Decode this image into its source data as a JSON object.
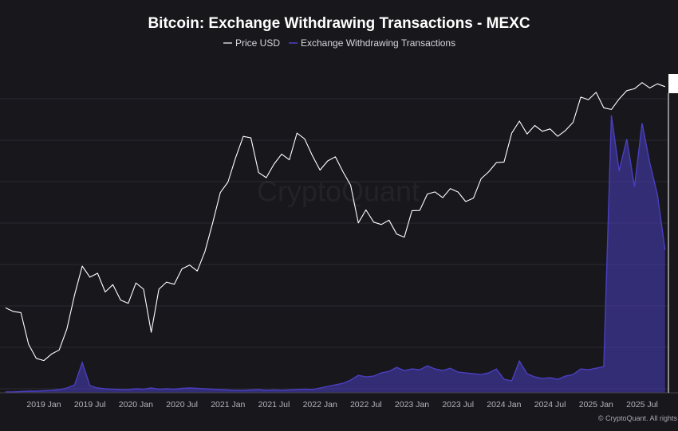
{
  "chart_data": {
    "type": "line",
    "title": "Bitcoin: Exchange Withdrawing Transactions - MEXC",
    "legend": {
      "placement": "top-center",
      "entries": [
        {
          "name": "Price USD",
          "color": "#ffffff"
        },
        {
          "name": "Exchange Withdrawing Transactions",
          "color": "#4a3fc0"
        }
      ]
    },
    "x_tick_labels": [
      "2019 Jan",
      "2019 Jul",
      "2020 Jan",
      "2020 Jul",
      "2021 Jan",
      "2021 Jul",
      "2022 Jan",
      "2022 Jul",
      "2023 Jan",
      "2023 Jul",
      "2024 Jan",
      "2024 Jul",
      "2025 Jan",
      "2025 Jul"
    ],
    "x_range": [
      "2018-08",
      "2025-10"
    ],
    "grid": true,
    "y_axis_price": {
      "scale": "log",
      "range": [
        3000,
        125000
      ]
    },
    "y_axis_transactions": {
      "scale": "linear",
      "range": [
        0,
        4000
      ]
    },
    "series": [
      {
        "name": "Price USD",
        "color": "#ffffff",
        "points": [
          [
            "2018-08",
            6800
          ],
          [
            "2018-09",
            6500
          ],
          [
            "2018-10",
            6400
          ],
          [
            "2018-11",
            4300
          ],
          [
            "2018-12",
            3600
          ],
          [
            "2019-01",
            3500
          ],
          [
            "2019-02",
            3800
          ],
          [
            "2019-03",
            4000
          ],
          [
            "2019-04",
            5200
          ],
          [
            "2019-05",
            8000
          ],
          [
            "2019-06",
            11500
          ],
          [
            "2019-07",
            10000
          ],
          [
            "2019-08",
            10500
          ],
          [
            "2019-09",
            8300
          ],
          [
            "2019-10",
            9100
          ],
          [
            "2019-11",
            7500
          ],
          [
            "2019-12",
            7200
          ],
          [
            "2020-01",
            9300
          ],
          [
            "2020-02",
            8600
          ],
          [
            "2020-03",
            5000
          ],
          [
            "2020-04",
            8600
          ],
          [
            "2020-05",
            9400
          ],
          [
            "2020-06",
            9150
          ],
          [
            "2020-07",
            11100
          ],
          [
            "2020-08",
            11650
          ],
          [
            "2020-09",
            10800
          ],
          [
            "2020-10",
            13800
          ],
          [
            "2020-11",
            19700
          ],
          [
            "2020-12",
            29000
          ],
          [
            "2021-01",
            33100
          ],
          [
            "2021-02",
            45000
          ],
          [
            "2021-03",
            58800
          ],
          [
            "2021-04",
            57700
          ],
          [
            "2021-05",
            37300
          ],
          [
            "2021-06",
            35000
          ],
          [
            "2021-07",
            41500
          ],
          [
            "2021-08",
            47100
          ],
          [
            "2021-09",
            43800
          ],
          [
            "2021-10",
            61300
          ],
          [
            "2021-11",
            57000
          ],
          [
            "2021-12",
            46300
          ],
          [
            "2022-01",
            38500
          ],
          [
            "2022-02",
            43200
          ],
          [
            "2022-03",
            45500
          ],
          [
            "2022-04",
            37700
          ],
          [
            "2022-05",
            31800
          ],
          [
            "2022-06",
            19800
          ],
          [
            "2022-07",
            23300
          ],
          [
            "2022-08",
            20000
          ],
          [
            "2022-09",
            19400
          ],
          [
            "2022-10",
            20500
          ],
          [
            "2022-11",
            17200
          ],
          [
            "2022-12",
            16550
          ],
          [
            "2023-01",
            23100
          ],
          [
            "2023-02",
            23150
          ],
          [
            "2023-03",
            28500
          ],
          [
            "2023-04",
            29250
          ],
          [
            "2023-05",
            27200
          ],
          [
            "2023-06",
            30500
          ],
          [
            "2023-07",
            29200
          ],
          [
            "2023-08",
            25900
          ],
          [
            "2023-09",
            27000
          ],
          [
            "2023-10",
            34500
          ],
          [
            "2023-11",
            37700
          ],
          [
            "2023-12",
            42300
          ],
          [
            "2024-01",
            42600
          ],
          [
            "2024-02",
            61200
          ],
          [
            "2024-03",
            71300
          ],
          [
            "2024-04",
            60600
          ],
          [
            "2024-05",
            67500
          ],
          [
            "2024-06",
            62700
          ],
          [
            "2024-07",
            64600
          ],
          [
            "2024-08",
            58900
          ],
          [
            "2024-09",
            63300
          ],
          [
            "2024-10",
            70200
          ],
          [
            "2024-11",
            96400
          ],
          [
            "2024-12",
            93400
          ],
          [
            "2025-01",
            102400
          ],
          [
            "2025-02",
            84300
          ],
          [
            "2025-03",
            82500
          ],
          [
            "2025-04",
            94200
          ],
          [
            "2025-05",
            104600
          ],
          [
            "2025-06",
            107100
          ],
          [
            "2025-07",
            115700
          ],
          [
            "2025-08",
            108200
          ],
          [
            "2025-09",
            114000
          ],
          [
            "2025-10",
            110000
          ]
        ]
      },
      {
        "name": "Exchange Withdrawing Transactions",
        "color": "#4a3fc0",
        "points": [
          [
            "2018-08",
            10
          ],
          [
            "2018-09",
            10
          ],
          [
            "2018-10",
            15
          ],
          [
            "2018-11",
            20
          ],
          [
            "2018-12",
            20
          ],
          [
            "2019-01",
            25
          ],
          [
            "2019-02",
            30
          ],
          [
            "2019-03",
            40
          ],
          [
            "2019-04",
            60
          ],
          [
            "2019-05",
            100
          ],
          [
            "2019-06",
            380
          ],
          [
            "2019-07",
            90
          ],
          [
            "2019-08",
            60
          ],
          [
            "2019-09",
            50
          ],
          [
            "2019-10",
            45
          ],
          [
            "2019-11",
            40
          ],
          [
            "2019-12",
            40
          ],
          [
            "2020-01",
            50
          ],
          [
            "2020-02",
            45
          ],
          [
            "2020-03",
            60
          ],
          [
            "2020-04",
            45
          ],
          [
            "2020-05",
            50
          ],
          [
            "2020-06",
            45
          ],
          [
            "2020-07",
            55
          ],
          [
            "2020-08",
            60
          ],
          [
            "2020-09",
            55
          ],
          [
            "2020-10",
            50
          ],
          [
            "2020-11",
            45
          ],
          [
            "2020-12",
            40
          ],
          [
            "2021-01",
            35
          ],
          [
            "2021-02",
            30
          ],
          [
            "2021-03",
            30
          ],
          [
            "2021-04",
            35
          ],
          [
            "2021-05",
            40
          ],
          [
            "2021-06",
            30
          ],
          [
            "2021-07",
            35
          ],
          [
            "2021-08",
            30
          ],
          [
            "2021-09",
            35
          ],
          [
            "2021-10",
            40
          ],
          [
            "2021-11",
            45
          ],
          [
            "2021-12",
            40
          ],
          [
            "2022-01",
            60
          ],
          [
            "2022-02",
            80
          ],
          [
            "2022-03",
            100
          ],
          [
            "2022-04",
            120
          ],
          [
            "2022-05",
            160
          ],
          [
            "2022-06",
            220
          ],
          [
            "2022-07",
            200
          ],
          [
            "2022-08",
            210
          ],
          [
            "2022-09",
            250
          ],
          [
            "2022-10",
            270
          ],
          [
            "2022-11",
            320
          ],
          [
            "2022-12",
            280
          ],
          [
            "2023-01",
            300
          ],
          [
            "2023-02",
            290
          ],
          [
            "2023-03",
            340
          ],
          [
            "2023-04",
            300
          ],
          [
            "2023-05",
            280
          ],
          [
            "2023-06",
            310
          ],
          [
            "2023-07",
            260
          ],
          [
            "2023-08",
            250
          ],
          [
            "2023-09",
            240
          ],
          [
            "2023-10",
            230
          ],
          [
            "2023-11",
            250
          ],
          [
            "2023-12",
            300
          ],
          [
            "2024-01",
            170
          ],
          [
            "2024-02",
            150
          ],
          [
            "2024-03",
            400
          ],
          [
            "2024-04",
            240
          ],
          [
            "2024-05",
            200
          ],
          [
            "2024-06",
            180
          ],
          [
            "2024-07",
            190
          ],
          [
            "2024-08",
            170
          ],
          [
            "2024-09",
            210
          ],
          [
            "2024-10",
            230
          ],
          [
            "2024-11",
            300
          ],
          [
            "2024-12",
            290
          ],
          [
            "2025-01",
            310
          ],
          [
            "2025-02",
            330
          ],
          [
            "2025-03",
            3500
          ],
          [
            "2025-04",
            2800
          ],
          [
            "2025-05",
            3200
          ],
          [
            "2025-06",
            2600
          ],
          [
            "2025-07",
            3400
          ],
          [
            "2025-08",
            2900
          ],
          [
            "2025-09",
            2500
          ],
          [
            "2025-10",
            1800
          ]
        ]
      }
    ],
    "watermark": "CryptoQuant",
    "credit": "© CryptoQuant. All rights"
  }
}
